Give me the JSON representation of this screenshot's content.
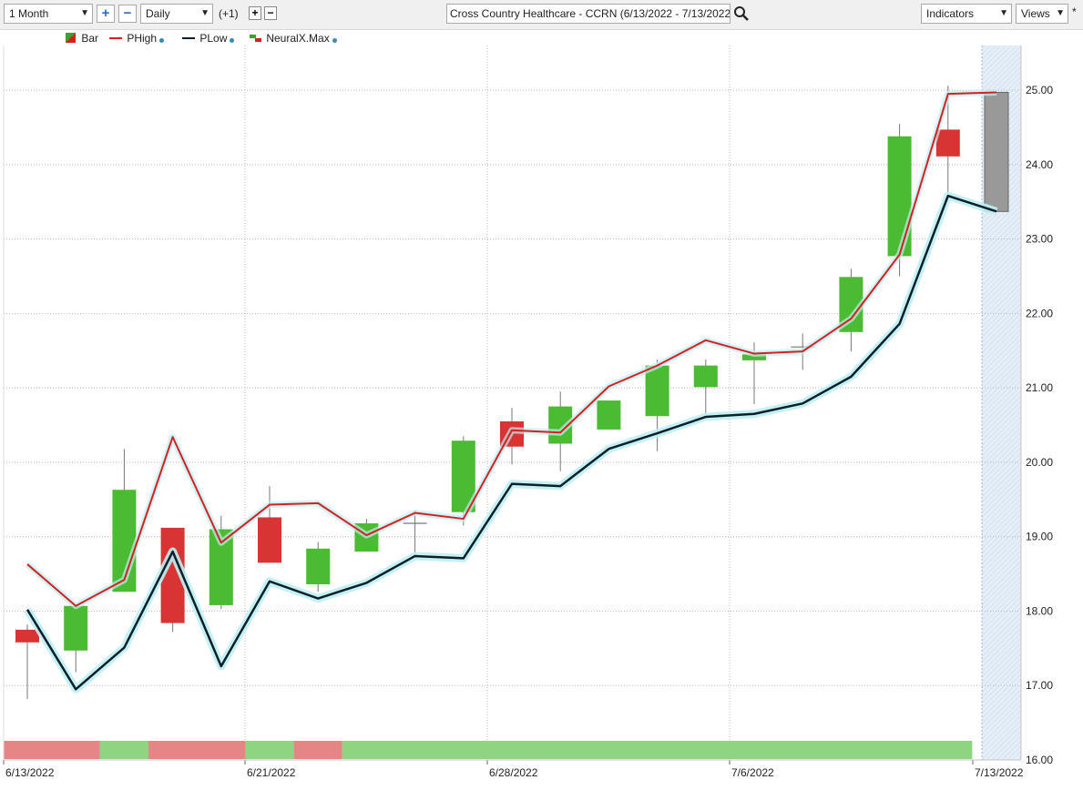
{
  "toolbar": {
    "range_value": "1 Month",
    "interval_value": "Daily",
    "offset_label": "(+1)",
    "plus_glyph": "+",
    "minus_glyph": "−",
    "small_plus": "+",
    "small_minus": "−",
    "symbol_field": "Cross Country Healthcare - CCRN (6/13/2022 - 7/13/2022)",
    "indicators_label": "Indicators",
    "views_label": "Views",
    "star": "*",
    "search_icon": "search-icon",
    "dropdown_icon": "chevron-down-icon"
  },
  "legend": [
    {
      "label": "Bar",
      "icon": "bar-icon"
    },
    {
      "label": "PHigh",
      "color": "#d42020"
    },
    {
      "label": "PLow",
      "color": "#0d1f2a"
    },
    {
      "label": "NeuralX.Max",
      "icon": "neuralx-icon"
    }
  ],
  "chart_data": {
    "type": "candlestick",
    "title": "",
    "xlabel": "",
    "ylabel": "",
    "ylim": [
      16,
      25.6
    ],
    "y_ticks": [
      "16.00",
      "17.00",
      "18.00",
      "19.00",
      "20.00",
      "21.00",
      "22.00",
      "23.00",
      "24.00",
      "25.00"
    ],
    "x_tick_labels": [
      "6/13/2022",
      "6/21/2022",
      "6/28/2022",
      "7/6/2022",
      "7/13/2022"
    ],
    "x_tick_index": [
      0,
      5,
      10,
      15,
      20.5
    ],
    "colors": {
      "up": "#4cbb34",
      "down": "#d93434",
      "forecast": "#999999",
      "phigh": "#d42020",
      "plow": "#0d1f2a",
      "glow": "#bfeff2"
    },
    "candles": [
      {
        "o": 17.75,
        "h": 17.82,
        "l": 16.82,
        "c": 17.58
      },
      {
        "o": 17.47,
        "h": 18.05,
        "l": 17.18,
        "c": 18.07
      },
      {
        "o": 18.26,
        "h": 20.18,
        "l": 18.26,
        "c": 19.63
      },
      {
        "o": 19.12,
        "h": 19.12,
        "l": 17.72,
        "c": 17.84
      },
      {
        "o": 18.08,
        "h": 19.28,
        "l": 18.03,
        "c": 19.1
      },
      {
        "o": 19.26,
        "h": 19.68,
        "l": 18.65,
        "c": 18.65
      },
      {
        "o": 18.36,
        "h": 18.93,
        "l": 18.26,
        "c": 18.84
      },
      {
        "o": 18.8,
        "h": 19.24,
        "l": 18.8,
        "c": 19.18
      },
      {
        "o": 19.18,
        "h": 19.35,
        "l": 18.72,
        "c": 19.18
      },
      {
        "o": 19.33,
        "h": 20.35,
        "l": 19.15,
        "c": 20.29
      },
      {
        "o": 20.55,
        "h": 20.73,
        "l": 19.97,
        "c": 20.21
      },
      {
        "o": 20.25,
        "h": 20.95,
        "l": 19.88,
        "c": 20.75
      },
      {
        "o": 20.44,
        "h": 20.83,
        "l": 20.44,
        "c": 20.83
      },
      {
        "o": 20.62,
        "h": 21.38,
        "l": 20.15,
        "c": 21.3
      },
      {
        "o": 21.01,
        "h": 21.38,
        "l": 20.6,
        "c": 21.3
      },
      {
        "o": 21.37,
        "h": 21.61,
        "l": 20.78,
        "c": 21.45
      },
      {
        "o": 21.55,
        "h": 21.73,
        "l": 21.24,
        "c": 21.55
      },
      {
        "o": 21.75,
        "h": 22.6,
        "l": 21.49,
        "c": 22.49
      },
      {
        "o": 22.77,
        "h": 24.55,
        "l": 22.5,
        "c": 24.38
      },
      {
        "o": 24.47,
        "h": 25.06,
        "l": 23.6,
        "c": 24.11
      }
    ],
    "forecast": {
      "o": 24.97,
      "c": 23.37
    },
    "series": [
      {
        "name": "PHigh",
        "values": [
          18.63,
          18.07,
          18.42,
          20.34,
          18.92,
          19.43,
          19.45,
          19.02,
          19.32,
          19.24,
          20.43,
          20.4,
          21.02,
          21.3,
          21.64,
          21.46,
          21.49,
          21.93,
          22.79,
          24.95,
          24.97
        ]
      },
      {
        "name": "PLow",
        "values": [
          18.02,
          16.95,
          17.51,
          18.8,
          17.26,
          18.4,
          18.17,
          18.38,
          18.74,
          18.71,
          19.71,
          19.68,
          20.18,
          20.39,
          20.61,
          20.65,
          20.79,
          21.15,
          21.86,
          23.58,
          23.37
        ]
      }
    ],
    "signal_strip": [
      {
        "from": 0,
        "to": 2,
        "color": "#e58585"
      },
      {
        "from": 2,
        "to": 3,
        "color": "#8fd581"
      },
      {
        "from": 3,
        "to": 5,
        "color": "#e58585"
      },
      {
        "from": 5,
        "to": 6,
        "color": "#8fd581"
      },
      {
        "from": 6,
        "to": 7,
        "color": "#e58585"
      },
      {
        "from": 7,
        "to": 20,
        "color": "#8fd581"
      }
    ]
  }
}
